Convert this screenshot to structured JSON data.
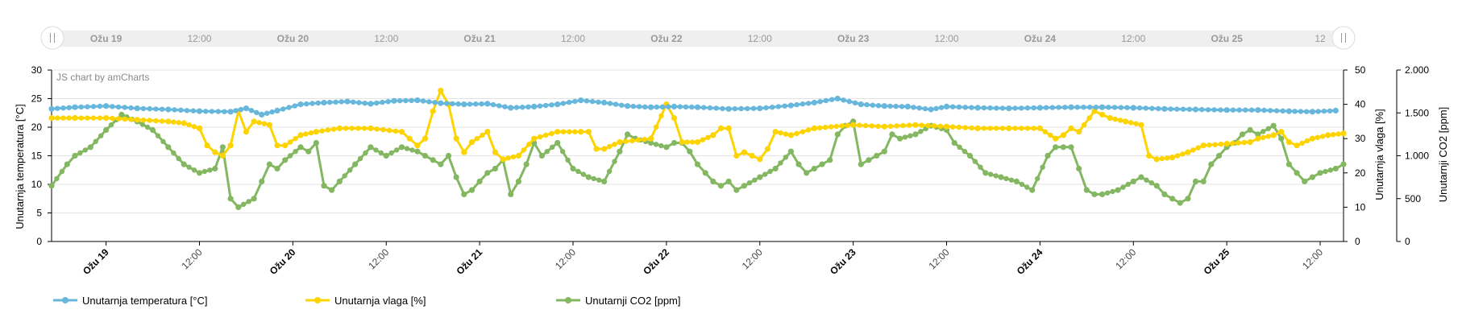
{
  "chart_data": {
    "type": "line",
    "credit": "JS chart by amCharts",
    "x_labels": [
      "Ožu 19",
      "12:00",
      "Ožu 20",
      "12:00",
      "Ožu 21",
      "12:00",
      "Ožu 22",
      "12:00",
      "Ožu 23",
      "12:00",
      "Ožu 24",
      "12:00",
      "Ožu 25",
      "12:00"
    ],
    "x_days": [
      "Ožu 19",
      "Ožu 20",
      "Ožu 21",
      "Ožu 22",
      "Ožu 23",
      "Ožu 24",
      "Ožu 25"
    ],
    "x_range_hours": [
      -7,
      159
    ],
    "scrollbar_labels": [
      "Ožu 19",
      "12:00",
      "Ožu 20",
      "12:00",
      "Ožu 21",
      "12:00",
      "Ožu 22",
      "12:00",
      "Ožu 23",
      "12:00",
      "Ožu 24",
      "12:00",
      "Ožu 25",
      "12"
    ],
    "axes": {
      "left": {
        "title": "Unutarnja temperatura [°C]",
        "min": 0,
        "max": 30,
        "ticks": [
          "0",
          "5",
          "10",
          "15",
          "20",
          "25",
          "30"
        ]
      },
      "right1": {
        "title": "Unutarnja vlaga [%]",
        "min": 0,
        "max": 50,
        "ticks": [
          "0",
          "10",
          "20",
          "30",
          "40",
          "50"
        ]
      },
      "right2": {
        "title": "Unutarnji CO2 [ppm]",
        "min": 0,
        "max": 2000,
        "ticks": [
          "0",
          "500",
          "1.000",
          "1.500",
          "2.000"
        ]
      }
    },
    "grid": true,
    "legend_position": "bottom-left",
    "series": [
      {
        "name": "Unutarnja temperatura [°C]",
        "axis": "left",
        "color": "#67b7dc",
        "points": [
          [
            -7,
            23.2
          ],
          [
            -4,
            23.5
          ],
          [
            0,
            23.7
          ],
          [
            4,
            23.3
          ],
          [
            8,
            23.1
          ],
          [
            12,
            22.8
          ],
          [
            16,
            22.7
          ],
          [
            18,
            23.3
          ],
          [
            20,
            22.2
          ],
          [
            22,
            22.9
          ],
          [
            25,
            24.0
          ],
          [
            28,
            24.3
          ],
          [
            31,
            24.5
          ],
          [
            34,
            24.1
          ],
          [
            37,
            24.6
          ],
          [
            40,
            24.7
          ],
          [
            43,
            24.2
          ],
          [
            46,
            24.0
          ],
          [
            49,
            24.1
          ],
          [
            52,
            23.4
          ],
          [
            55,
            23.6
          ],
          [
            58,
            24.0
          ],
          [
            61,
            24.7
          ],
          [
            64,
            24.3
          ],
          [
            67,
            23.7
          ],
          [
            70,
            23.5
          ],
          [
            73,
            23.6
          ],
          [
            76,
            23.5
          ],
          [
            80,
            23.2
          ],
          [
            84,
            23.3
          ],
          [
            88,
            23.8
          ],
          [
            91,
            24.3
          ],
          [
            94,
            25.0
          ],
          [
            97,
            24.0
          ],
          [
            100,
            23.7
          ],
          [
            103,
            23.6
          ],
          [
            106,
            23.1
          ],
          [
            108,
            23.6
          ],
          [
            112,
            23.4
          ],
          [
            116,
            23.3
          ],
          [
            120,
            23.4
          ],
          [
            124,
            23.5
          ],
          [
            128,
            23.5
          ],
          [
            132,
            23.4
          ],
          [
            136,
            23.2
          ],
          [
            140,
            23.1
          ],
          [
            144,
            23.0
          ],
          [
            148,
            23.0
          ],
          [
            152,
            22.8
          ],
          [
            155,
            22.7
          ],
          [
            158,
            22.9
          ]
        ]
      },
      {
        "name": "Unutarnja vlaga [%]",
        "axis": "right1",
        "color": "#fdd400",
        "points": [
          [
            -7,
            36
          ],
          [
            -4,
            36
          ],
          [
            0,
            36
          ],
          [
            4,
            35.5
          ],
          [
            8,
            35
          ],
          [
            10,
            34.5
          ],
          [
            12,
            33
          ],
          [
            13,
            28
          ],
          [
            14,
            26
          ],
          [
            15,
            25
          ],
          [
            16,
            28
          ],
          [
            17,
            38
          ],
          [
            18,
            32
          ],
          [
            19,
            35
          ],
          [
            21,
            34
          ],
          [
            22,
            28
          ],
          [
            23,
            28
          ],
          [
            25,
            31
          ],
          [
            27,
            32
          ],
          [
            30,
            33
          ],
          [
            34,
            33
          ],
          [
            38,
            32
          ],
          [
            39,
            30
          ],
          [
            40,
            28
          ],
          [
            41,
            30
          ],
          [
            42,
            38
          ],
          [
            43,
            44
          ],
          [
            44,
            40
          ],
          [
            45,
            30
          ],
          [
            46,
            26
          ],
          [
            47,
            29
          ],
          [
            49,
            32
          ],
          [
            50,
            26
          ],
          [
            51,
            24
          ],
          [
            53,
            25
          ],
          [
            55,
            30
          ],
          [
            58,
            32
          ],
          [
            61,
            32
          ],
          [
            62,
            32
          ],
          [
            63,
            27
          ],
          [
            64,
            27
          ],
          [
            66,
            29
          ],
          [
            70,
            30
          ],
          [
            72,
            40
          ],
          [
            73,
            36
          ],
          [
            74,
            29
          ],
          [
            76,
            29
          ],
          [
            78,
            31
          ],
          [
            79,
            33
          ],
          [
            80,
            33
          ],
          [
            81,
            25
          ],
          [
            82,
            26
          ],
          [
            83,
            25
          ],
          [
            84,
            24
          ],
          [
            85,
            27
          ],
          [
            86,
            32
          ],
          [
            88,
            31
          ],
          [
            91,
            33
          ],
          [
            96,
            34
          ],
          [
            100,
            33.5
          ],
          [
            104,
            34
          ],
          [
            108,
            33.5
          ],
          [
            112,
            33
          ],
          [
            116,
            33
          ],
          [
            120,
            33
          ],
          [
            122,
            30
          ],
          [
            123,
            31
          ],
          [
            124,
            33
          ],
          [
            125,
            32
          ],
          [
            127,
            38
          ],
          [
            128,
            37
          ],
          [
            129,
            36
          ],
          [
            131,
            35
          ],
          [
            133,
            34
          ],
          [
            134,
            25
          ],
          [
            135,
            24
          ],
          [
            137,
            24.5
          ],
          [
            139,
            26
          ],
          [
            141,
            28
          ],
          [
            144,
            28.5
          ],
          [
            147,
            29
          ],
          [
            148,
            30
          ],
          [
            150,
            31
          ],
          [
            151,
            32
          ],
          [
            152,
            29
          ],
          [
            153,
            28
          ],
          [
            155,
            30
          ],
          [
            157,
            31
          ],
          [
            159,
            31.5
          ]
        ]
      },
      {
        "name": "Unutarnji CO2 [ppm]",
        "axis": "right2",
        "color": "#84b761",
        "points": [
          [
            -7,
            650
          ],
          [
            -5,
            900
          ],
          [
            -4,
            1000
          ],
          [
            -2,
            1100
          ],
          [
            0,
            1300
          ],
          [
            2,
            1480
          ],
          [
            4,
            1400
          ],
          [
            6,
            1300
          ],
          [
            8,
            1100
          ],
          [
            10,
            900
          ],
          [
            12,
            800
          ],
          [
            14,
            850
          ],
          [
            15,
            1100
          ],
          [
            16,
            500
          ],
          [
            17,
            400
          ],
          [
            19,
            500
          ],
          [
            20,
            700
          ],
          [
            21,
            900
          ],
          [
            22,
            850
          ],
          [
            23,
            950
          ],
          [
            25,
            1100
          ],
          [
            26,
            1050
          ],
          [
            27,
            1150
          ],
          [
            28,
            650
          ],
          [
            29,
            600
          ],
          [
            30,
            700
          ],
          [
            32,
            900
          ],
          [
            34,
            1100
          ],
          [
            36,
            1000
          ],
          [
            38,
            1100
          ],
          [
            40,
            1050
          ],
          [
            41,
            1000
          ],
          [
            42,
            950
          ],
          [
            43,
            900
          ],
          [
            44,
            1000
          ],
          [
            45,
            750
          ],
          [
            46,
            550
          ],
          [
            47,
            600
          ],
          [
            48,
            700
          ],
          [
            49,
            800
          ],
          [
            50,
            850
          ],
          [
            51,
            950
          ],
          [
            52,
            550
          ],
          [
            53,
            700
          ],
          [
            54,
            900
          ],
          [
            55,
            1150
          ],
          [
            56,
            1000
          ],
          [
            58,
            1150
          ],
          [
            60,
            850
          ],
          [
            62,
            750
          ],
          [
            64,
            700
          ],
          [
            66,
            1050
          ],
          [
            67,
            1250
          ],
          [
            68,
            1200
          ],
          [
            70,
            1150
          ],
          [
            72,
            1100
          ],
          [
            73,
            1150
          ],
          [
            74,
            1150
          ],
          [
            75,
            1050
          ],
          [
            76,
            900
          ],
          [
            77,
            800
          ],
          [
            78,
            700
          ],
          [
            79,
            650
          ],
          [
            80,
            700
          ],
          [
            81,
            600
          ],
          [
            82,
            650
          ],
          [
            84,
            750
          ],
          [
            86,
            850
          ],
          [
            88,
            1050
          ],
          [
            89,
            900
          ],
          [
            90,
            800
          ],
          [
            91,
            850
          ],
          [
            92,
            900
          ],
          [
            93,
            950
          ],
          [
            94,
            1250
          ],
          [
            95,
            1350
          ],
          [
            96,
            1400
          ],
          [
            97,
            900
          ],
          [
            98,
            950
          ],
          [
            99,
            1000
          ],
          [
            100,
            1050
          ],
          [
            101,
            1250
          ],
          [
            102,
            1200
          ],
          [
            104,
            1250
          ],
          [
            106,
            1350
          ],
          [
            108,
            1300
          ],
          [
            109,
            1150
          ],
          [
            111,
            1000
          ],
          [
            113,
            800
          ],
          [
            115,
            750
          ],
          [
            117,
            700
          ],
          [
            119,
            600
          ],
          [
            121,
            1000
          ],
          [
            122,
            1100
          ],
          [
            123,
            1100
          ],
          [
            124,
            1100
          ],
          [
            125,
            850
          ],
          [
            126,
            600
          ],
          [
            127,
            550
          ],
          [
            128,
            550
          ],
          [
            130,
            600
          ],
          [
            132,
            700
          ],
          [
            133,
            750
          ],
          [
            135,
            650
          ],
          [
            136,
            550
          ],
          [
            137,
            500
          ],
          [
            138,
            450
          ],
          [
            139,
            500
          ],
          [
            140,
            700
          ],
          [
            141,
            700
          ],
          [
            142,
            900
          ],
          [
            143,
            1000
          ],
          [
            144,
            1100
          ],
          [
            145,
            1150
          ],
          [
            146,
            1250
          ],
          [
            147,
            1300
          ],
          [
            148,
            1250
          ],
          [
            150,
            1350
          ],
          [
            151,
            1200
          ],
          [
            152,
            900
          ],
          [
            153,
            800
          ],
          [
            154,
            700
          ],
          [
            155,
            750
          ],
          [
            156,
            800
          ],
          [
            158,
            850
          ],
          [
            159,
            900
          ]
        ]
      }
    ]
  }
}
